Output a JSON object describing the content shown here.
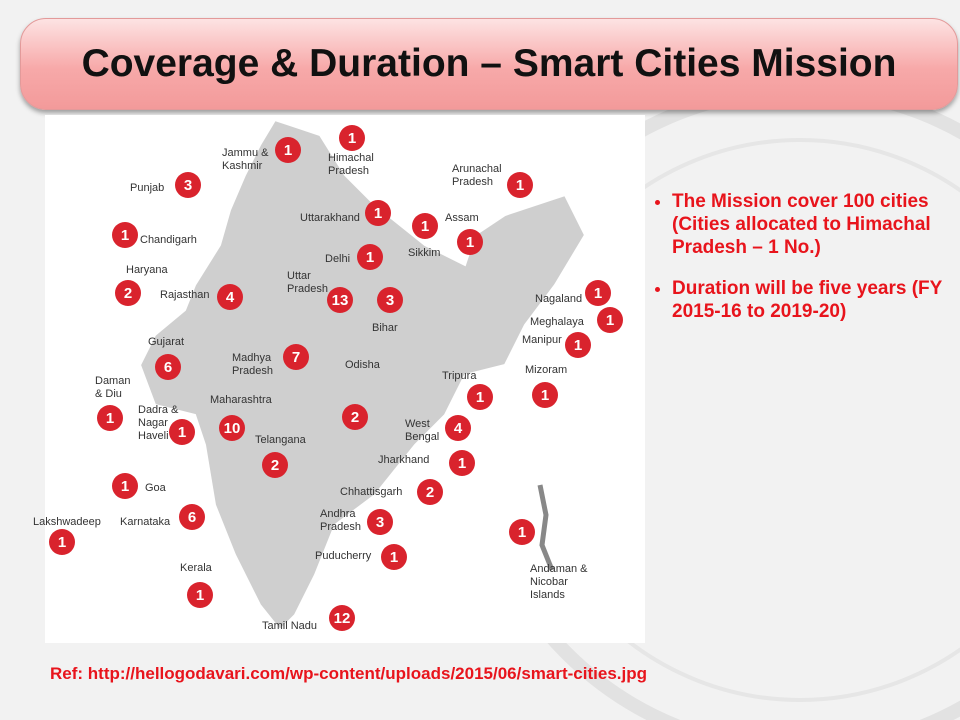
{
  "header": {
    "title": "Coverage & Duration – Smart Cities Mission"
  },
  "map": {
    "regions": [
      {
        "name": "Jammu & Kashmir",
        "cities": 1
      },
      {
        "name": "Himachal Pradesh",
        "cities": 1
      },
      {
        "name": "Punjab",
        "cities": 3
      },
      {
        "name": "Uttarakhand",
        "cities": 1
      },
      {
        "name": "Chandigarh",
        "cities": 1
      },
      {
        "name": "Haryana",
        "cities": 2
      },
      {
        "name": "Delhi",
        "cities": 1
      },
      {
        "name": "Rajasthan",
        "cities": 4
      },
      {
        "name": "Uttar Pradesh",
        "cities": 13
      },
      {
        "name": "Bihar",
        "cities": 3
      },
      {
        "name": "Sikkim",
        "cities": 1
      },
      {
        "name": "Assam",
        "cities": 1
      },
      {
        "name": "Arunachal Pradesh",
        "cities": 1
      },
      {
        "name": "Nagaland",
        "cities": 1
      },
      {
        "name": "Meghalaya",
        "cities": 1
      },
      {
        "name": "Manipur",
        "cities": 1
      },
      {
        "name": "Mizoram",
        "cities": 1
      },
      {
        "name": "Tripura",
        "cities": 1
      },
      {
        "name": "Gujarat",
        "cities": 6
      },
      {
        "name": "Madhya Pradesh",
        "cities": 7
      },
      {
        "name": "Odisha",
        "cities": 2
      },
      {
        "name": "Daman & Diu",
        "cities": 1
      },
      {
        "name": "Dadra & Nagar Haveli",
        "cities": 1
      },
      {
        "name": "Maharashtra",
        "cities": 10
      },
      {
        "name": "West Bengal",
        "cities": 4
      },
      {
        "name": "Telangana",
        "cities": 2
      },
      {
        "name": "Jharkhand",
        "cities": 1
      },
      {
        "name": "Goa",
        "cities": 1
      },
      {
        "name": "Chhattisgarh",
        "cities": 2
      },
      {
        "name": "Lakshwadeep",
        "cities": 1
      },
      {
        "name": "Karnataka",
        "cities": 6
      },
      {
        "name": "Andhra Pradesh",
        "cities": 3
      },
      {
        "name": "Andaman & Nicobar Islands",
        "cities": 1
      },
      {
        "name": "Puducherry",
        "cities": 1
      },
      {
        "name": "Kerala",
        "cities": 1
      },
      {
        "name": "Tamil Nadu",
        "cities": 12
      }
    ]
  },
  "bullets": [
    "The Mission cover 100 cities (Cities allocated to Himachal Pradesh – 1 No.)",
    "Duration will be five years (FY 2015-16 to 2019-20)"
  ],
  "reference": "Ref: http://hellogodavari.com/wp-content/uploads/2015/06/smart-cities.jpg"
}
